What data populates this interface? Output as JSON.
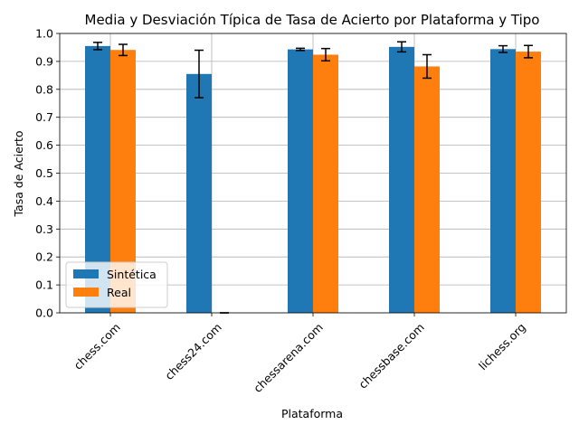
{
  "chart_data": {
    "type": "bar",
    "title": "Media y Desviación Típica de Tasa de Acierto por Plataforma y Tipo",
    "xlabel": "Plataforma",
    "ylabel": "Tasa de Acierto",
    "ylim": [
      0.0,
      1.0
    ],
    "yticks": [
      "0.0",
      "0.1",
      "0.2",
      "0.3",
      "0.4",
      "0.5",
      "0.6",
      "0.7",
      "0.8",
      "0.9",
      "1.0"
    ],
    "grid": true,
    "legend_position": "lower-left",
    "categories": [
      "chess.com",
      "chess24.com",
      "chessarena.com",
      "chessbase.com",
      "lichess.org"
    ],
    "series": [
      {
        "name": "Sintética",
        "color": "#1f77b4",
        "values": [
          0.955,
          0.855,
          0.943,
          0.952,
          0.944
        ],
        "std": [
          0.013,
          0.085,
          0.004,
          0.018,
          0.012
        ]
      },
      {
        "name": "Real",
        "color": "#ff7f0e",
        "values": [
          0.941,
          0.0,
          0.924,
          0.882,
          0.935
        ],
        "std": [
          0.02,
          0.0,
          0.022,
          0.042,
          0.022
        ]
      }
    ]
  }
}
